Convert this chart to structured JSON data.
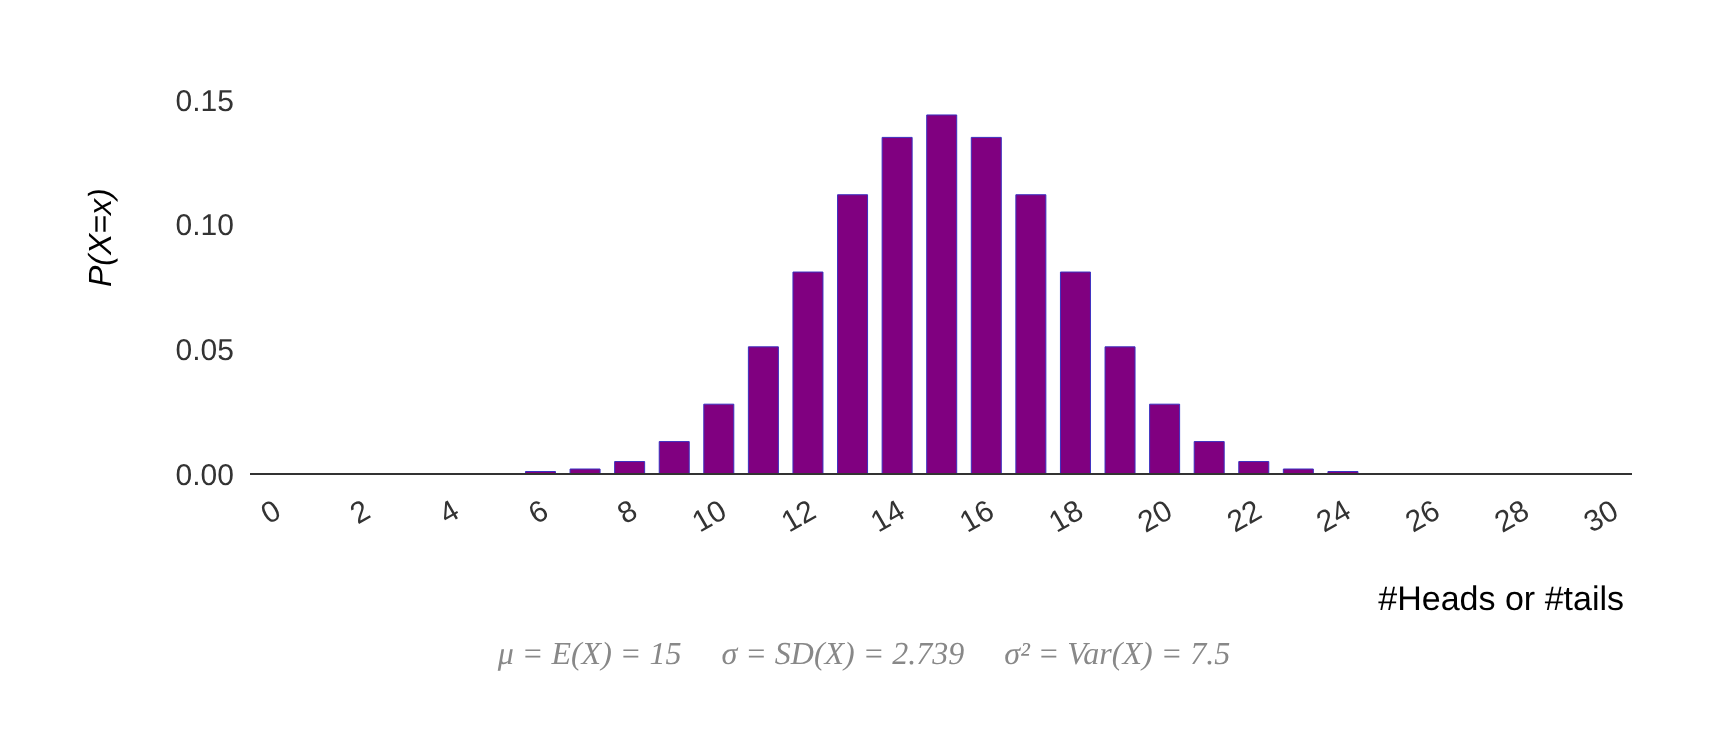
{
  "chart_data": {
    "type": "bar",
    "xlabel": "#Heads or #tails",
    "ylabel": "P(X=x)",
    "x": [
      0,
      1,
      2,
      3,
      4,
      5,
      6,
      7,
      8,
      9,
      10,
      11,
      12,
      13,
      14,
      15,
      16,
      17,
      18,
      19,
      20,
      21,
      22,
      23,
      24,
      25,
      26,
      27,
      28,
      29,
      30
    ],
    "values": [
      0,
      0,
      0,
      0,
      0,
      0,
      0.001,
      0.002,
      0.005,
      0.013,
      0.028,
      0.051,
      0.081,
      0.112,
      0.135,
      0.144,
      0.135,
      0.112,
      0.081,
      0.051,
      0.028,
      0.013,
      0.005,
      0.002,
      0.001,
      0,
      0,
      0,
      0,
      0,
      0
    ],
    "color": "#800080",
    "xlim": [
      -0.5,
      30.5
    ],
    "xticks": [
      0,
      2,
      4,
      6,
      8,
      10,
      12,
      14,
      16,
      18,
      20,
      22,
      24,
      26,
      28,
      30
    ],
    "ylim": [
      0,
      0.15
    ],
    "yticks": [
      {
        "value": 0,
        "label": "0.00"
      },
      0.05,
      {
        "value": 0.1,
        "label": "0.10"
      },
      0.15
    ],
    "grid": false,
    "legend": false,
    "annotations": [
      "μ = E(X) = 15     σ = SD(X) = 2.739     σ² = Var(X) = 7.5"
    ]
  }
}
